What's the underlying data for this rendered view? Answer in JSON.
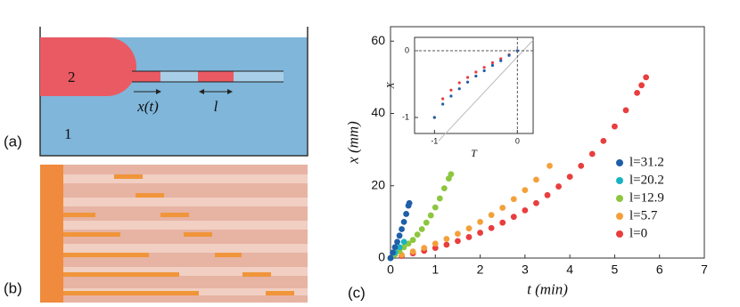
{
  "panels": {
    "labels": [
      "(a)",
      "(b)",
      "(c)"
    ]
  },
  "diagram": {
    "labels": [
      "2",
      "1",
      "x(t)",
      "l"
    ]
  },
  "chart_data": [
    {
      "type": "scatter",
      "x_label": "t (min)",
      "y_label": "x (mm)",
      "xlim": [
        0,
        7
      ],
      "ylim": [
        0,
        64
      ],
      "xticks": [
        0,
        1,
        2,
        3,
        4,
        5,
        6,
        7
      ],
      "yticks": [
        0,
        20,
        40,
        60
      ],
      "legend": "right",
      "series": [
        {
          "name": "l=31.2",
          "color": "#1f5fa8",
          "x": [
            0,
            0.05,
            0.1,
            0.15,
            0.2,
            0.25,
            0.3,
            0.35,
            0.4,
            0.42
          ],
          "values": [
            0,
            1.5,
            3,
            4.5,
            6.2,
            8,
            10,
            12.2,
            14.5,
            15.2
          ]
        },
        {
          "name": "l=20.2",
          "color": "#17b3c4",
          "x": [
            0,
            0.1,
            0.2,
            0.3
          ],
          "values": [
            0,
            1.5,
            3,
            4.5
          ]
        },
        {
          "name": "l=12.9",
          "color": "#8dc63f",
          "x": [
            0,
            0.1,
            0.2,
            0.3,
            0.4,
            0.5,
            0.6,
            0.7,
            0.8,
            0.9,
            1.0,
            1.1,
            1.2,
            1.3,
            1.35
          ],
          "values": [
            0,
            1,
            2,
            3,
            4,
            5,
            6.5,
            8,
            9.8,
            11.8,
            14,
            16.5,
            19.3,
            22,
            23.2
          ]
        },
        {
          "name": "l=5.7",
          "color": "#f4a03a",
          "x": [
            0,
            0.25,
            0.5,
            0.75,
            1,
            1.25,
            1.5,
            1.75,
            2,
            2.25,
            2.5,
            2.75,
            3,
            3.25,
            3.55
          ],
          "values": [
            0,
            0.9,
            1.8,
            2.8,
            4,
            5.3,
            6.7,
            8.2,
            10,
            11.9,
            13.9,
            16.3,
            18.8,
            21.7,
            25.5
          ]
        },
        {
          "name": "l=0",
          "color": "#e83e3e",
          "x": [
            0,
            0.25,
            0.5,
            0.75,
            1,
            1.25,
            1.5,
            1.75,
            2,
            2.25,
            2.5,
            2.75,
            3,
            3.25,
            3.5,
            3.75,
            4,
            4.25,
            4.5,
            4.75,
            5,
            5.25,
            5.5,
            5.6,
            5.7
          ],
          "values": [
            0,
            0.6,
            1.3,
            2,
            2.8,
            3.7,
            4.7,
            5.8,
            7,
            8.3,
            9.8,
            11.4,
            13.2,
            15.2,
            17.4,
            19.8,
            22.5,
            25.5,
            28.8,
            32.4,
            36.4,
            40.9,
            45.7,
            47.8,
            50
          ]
        }
      ]
    },
    {
      "type": "scatter",
      "x_label": "T",
      "y_label": "X",
      "xlim": [
        -1.24,
        0.19
      ],
      "ylim": [
        -1.24,
        0.2
      ],
      "xticks": [
        -1,
        0
      ],
      "yticks": [
        0,
        -1
      ],
      "dashed_zero_lines": true,
      "series": [
        {
          "color": "#1f5fa8",
          "x": [
            -1,
            -0.9,
            -0.8,
            -0.7,
            -0.6,
            -0.5,
            -0.4,
            -0.3,
            -0.2,
            -0.1,
            0
          ],
          "values": [
            -1,
            -0.8,
            -0.68,
            -0.57,
            -0.47,
            -0.38,
            -0.3,
            -0.22,
            -0.15,
            -0.07,
            0
          ]
        },
        {
          "color": "#e83e3e",
          "x": [
            -1,
            -0.9,
            -0.8,
            -0.7,
            -0.6,
            -0.5,
            -0.4,
            -0.3,
            -0.2,
            -0.1,
            0
          ],
          "values": [
            -1,
            -0.72,
            -0.59,
            -0.48,
            -0.4,
            -0.32,
            -0.25,
            -0.18,
            -0.12,
            -0.06,
            0
          ]
        }
      ]
    }
  ]
}
